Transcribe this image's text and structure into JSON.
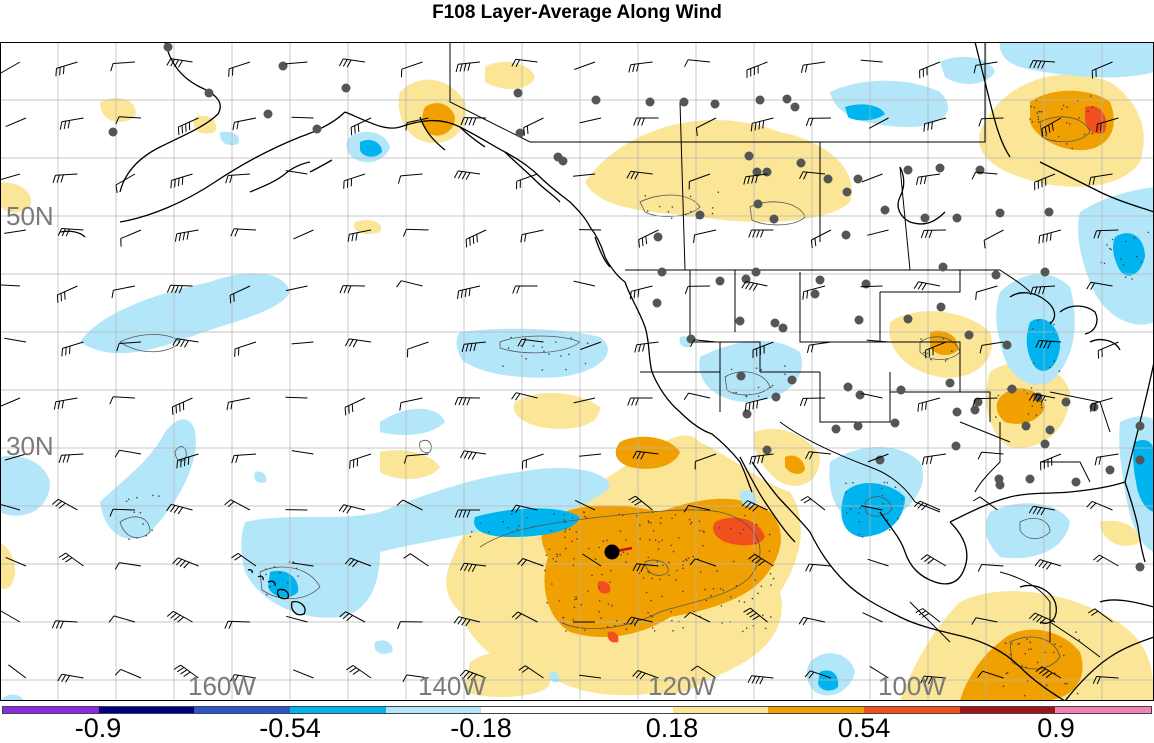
{
  "title": "F108 Layer-Average Along Wind",
  "grid_labels": {
    "lat_50": "50N",
    "lat_30": "30N",
    "lon_160": "160W",
    "lon_140": "140W",
    "lon_120": "120W",
    "lon_100": "100W"
  },
  "colorbar": {
    "colors": [
      "#8a2be2",
      "#00007f",
      "#2b55c8",
      "#00b4f0",
      "#b4e6fa",
      "#ffffff",
      "#ffffff",
      "#fae696",
      "#f0a000",
      "#f0501e",
      "#a0141e",
      "#f082b4"
    ],
    "tick_labels": [
      "-0.9",
      "-0.54",
      "-0.18",
      "0.18",
      "0.54",
      "0.9"
    ]
  },
  "map_colors": {
    "pos_light": "#fae696",
    "pos_mid": "#f0a000",
    "pos_strong": "#f0501e",
    "neg_light": "#b4e6fa",
    "neg_mid": "#00b4f0",
    "grid": "#b4b4b4",
    "coast": "#000000",
    "station": "#555555",
    "marker": "#000000"
  }
}
